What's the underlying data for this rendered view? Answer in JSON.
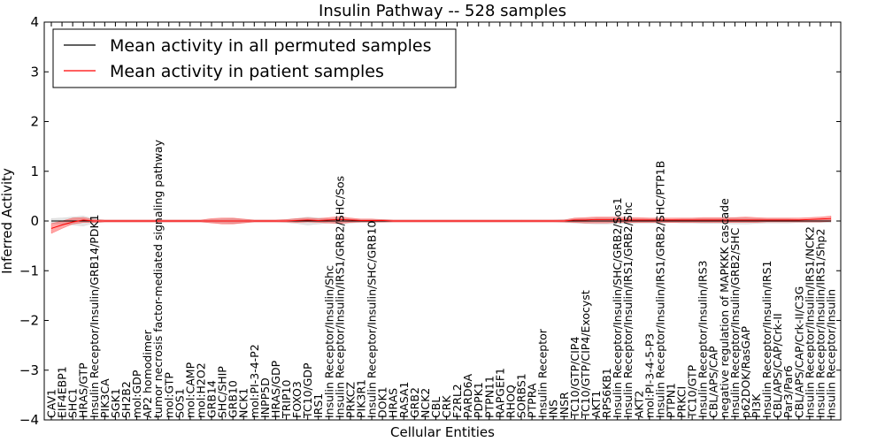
{
  "chart_data": {
    "type": "line",
    "title": "Insulin Pathway -- 528 samples",
    "xlabel": "Cellular Entities",
    "ylabel": "Inferred Activity",
    "ylim": [
      -4,
      4
    ],
    "yticks": [
      "4",
      "3",
      "2",
      "1",
      "0",
      "−1",
      "−2",
      "−3",
      "−4"
    ],
    "grid": false,
    "legend_position": "top-left",
    "legend": [
      {
        "label": "Mean activity in all permuted samples",
        "color": "#000000"
      },
      {
        "label": "Mean activity in patient samples",
        "color": "#ff0000"
      }
    ],
    "categories": [
      "CAV1",
      "EIF4EBP1",
      "SHC1",
      "HRAS/GTP",
      "Insulin Receptor/Insulin/GRB14/PDK1",
      "PIK3CA",
      "SGK1",
      "SH2B2",
      "mol:GDP",
      "AP2 homodimer",
      "tumor necrosis factor-mediated signaling pathway",
      "mol:GTP",
      "SOS1",
      "mol:CAMP",
      "mol:H2O2",
      "GRB14",
      "SHC/SHIP",
      "GRB10",
      "NCK1",
      "mol:PI-3-4-P2",
      "INPP5D",
      "HRAS/GDP",
      "TRIP10",
      "FOXO3",
      "TC10/GDP",
      "IRS1",
      "Insulin Receptor/Insulin/Shc",
      "Insulin Receptor/Insulin/IRS1/GRB2/SHC/Sos",
      "PRKCZ",
      "PIK3R1",
      "Insulin Receptor/Insulin/SHC/GRB10",
      "DOK1",
      "HRAS",
      "RASA1",
      "GRB2",
      "NCK2",
      "CBL",
      "CRK",
      "F2RL2",
      "PARD6A",
      "PDPK1",
      "PTPN11",
      "RAPGEF1",
      "RHOQ",
      "SORBS1",
      "PTPRA",
      "Insulin Receptor",
      "INS",
      "INSR",
      "TC10/GTP/CIP4",
      "TC10/GTP/CIP4/Exocyst",
      "AKT1",
      "RPS6KB1",
      "Insulin Receptor/Insulin/SHC/GRB2/Sos1",
      "Insulin Receptor/Insulin/IRS1/GRB2/Shc",
      "AKT2",
      "mol:PI-3-4-5-P3",
      "Insulin Receptor/Insulin/IRS1/GRB2/SHC/PTP1B",
      "PTPN1",
      "PRKCI",
      "TC10/GTP",
      "Insulin Receptor/Insulin/IRS3",
      "CBL/APS/CAP",
      "negative regulation of MAPKKK cascade",
      "Insulin Receptor/Insulin/GRB2/SHC",
      "p62DOK/RasGAP",
      "PI3K",
      "Insulin Receptor/Insulin/IRS1",
      "CBL/APS/CAP/Crk-II",
      "Par3/Par6",
      "CBL/APS/CAP/Crk-II/C3G",
      "Insulin Receptor/Insulin/IRS1/NCK2",
      "Insulin Receptor/Insulin/IRS1/Shp2",
      "Insulin Receptor/Insulin"
    ],
    "series": [
      {
        "name": "Mean activity in all permuted samples",
        "color": "#000000",
        "values": [
          0.0,
          0.0,
          0.0,
          0.0,
          0.0,
          0.0,
          0.0,
          0.0,
          0.0,
          0.0,
          0.0,
          0.0,
          0.0,
          0.0,
          0.0,
          0.0,
          0.0,
          0.0,
          0.0,
          0.0,
          0.0,
          0.0,
          0.0,
          0.0,
          0.0,
          0.0,
          0.0,
          0.0,
          0.0,
          0.0,
          0.0,
          0.0,
          0.0,
          0.0,
          0.0,
          0.0,
          0.0,
          0.0,
          0.0,
          0.0,
          0.0,
          0.0,
          0.0,
          0.0,
          0.0,
          0.0,
          0.0,
          0.0,
          0.0,
          0.0,
          0.0,
          0.0,
          0.0,
          0.0,
          0.0,
          0.0,
          0.0,
          0.0,
          0.0,
          0.0,
          0.0,
          0.0,
          0.0,
          0.0,
          0.0,
          0.0,
          0.0,
          0.0,
          0.0,
          0.0,
          0.0,
          0.0,
          0.0,
          0.0
        ],
        "band_lower": [
          -0.05,
          -0.06,
          -0.08,
          -0.1,
          -0.04,
          -0.02,
          -0.02,
          -0.02,
          -0.02,
          -0.02,
          -0.02,
          -0.02,
          -0.02,
          -0.02,
          -0.02,
          -0.03,
          -0.04,
          -0.05,
          -0.03,
          -0.02,
          -0.02,
          -0.02,
          -0.03,
          -0.05,
          -0.08,
          -0.06,
          -0.04,
          -0.05,
          -0.04,
          -0.03,
          -0.03,
          -0.03,
          -0.02,
          -0.02,
          -0.02,
          -0.02,
          -0.02,
          -0.02,
          -0.02,
          -0.02,
          -0.02,
          -0.02,
          -0.02,
          -0.02,
          -0.02,
          -0.02,
          -0.02,
          -0.02,
          -0.03,
          -0.04,
          -0.05,
          -0.06,
          -0.06,
          -0.05,
          -0.05,
          -0.04,
          -0.04,
          -0.04,
          -0.03,
          -0.04,
          -0.04,
          -0.05,
          -0.05,
          -0.05,
          -0.06,
          -0.06,
          -0.05,
          -0.04,
          -0.04,
          -0.04,
          -0.03,
          -0.03,
          -0.03,
          -0.03
        ],
        "band_upper": [
          0.05,
          0.06,
          0.08,
          0.1,
          0.04,
          0.02,
          0.02,
          0.02,
          0.02,
          0.02,
          0.02,
          0.02,
          0.02,
          0.02,
          0.02,
          0.03,
          0.04,
          0.05,
          0.03,
          0.02,
          0.02,
          0.02,
          0.03,
          0.05,
          0.08,
          0.06,
          0.04,
          0.05,
          0.04,
          0.03,
          0.03,
          0.03,
          0.02,
          0.02,
          0.02,
          0.02,
          0.02,
          0.02,
          0.02,
          0.02,
          0.02,
          0.02,
          0.02,
          0.02,
          0.02,
          0.02,
          0.02,
          0.02,
          0.03,
          0.04,
          0.05,
          0.06,
          0.06,
          0.05,
          0.05,
          0.04,
          0.04,
          0.04,
          0.03,
          0.04,
          0.04,
          0.05,
          0.05,
          0.05,
          0.06,
          0.06,
          0.05,
          0.04,
          0.04,
          0.04,
          0.03,
          0.03,
          0.03,
          0.03
        ]
      },
      {
        "name": "Mean activity in patient samples",
        "color": "#ff0000",
        "values": [
          -0.15,
          -0.08,
          -0.02,
          0.02,
          0.0,
          0.0,
          0.0,
          0.0,
          0.0,
          0.0,
          0.0,
          0.0,
          0.0,
          0.0,
          0.0,
          0.0,
          0.0,
          0.0,
          0.0,
          0.0,
          0.0,
          0.0,
          0.0,
          0.01,
          0.02,
          0.01,
          0.02,
          0.03,
          0.02,
          0.01,
          0.01,
          0.01,
          0.0,
          0.0,
          0.0,
          0.0,
          0.0,
          0.0,
          0.0,
          0.0,
          0.0,
          0.0,
          0.0,
          0.0,
          0.0,
          0.0,
          0.0,
          0.0,
          0.0,
          0.02,
          0.02,
          0.03,
          0.03,
          0.03,
          0.02,
          0.02,
          0.02,
          0.02,
          0.02,
          0.02,
          0.02,
          0.02,
          0.02,
          0.02,
          0.02,
          0.02,
          0.02,
          0.02,
          0.02,
          0.02,
          0.02,
          0.03,
          0.04,
          0.05
        ],
        "band_lower": [
          -0.25,
          -0.15,
          -0.06,
          -0.03,
          -0.03,
          -0.02,
          -0.02,
          -0.02,
          -0.02,
          -0.02,
          -0.02,
          -0.02,
          -0.02,
          -0.02,
          -0.02,
          -0.04,
          -0.06,
          -0.06,
          -0.04,
          -0.02,
          -0.02,
          -0.02,
          -0.02,
          -0.03,
          -0.02,
          -0.03,
          -0.04,
          -0.05,
          -0.03,
          -0.02,
          -0.02,
          -0.02,
          -0.02,
          -0.02,
          -0.02,
          -0.02,
          -0.02,
          -0.02,
          -0.02,
          -0.02,
          -0.02,
          -0.02,
          -0.02,
          -0.02,
          -0.02,
          -0.02,
          -0.02,
          -0.02,
          -0.02,
          -0.03,
          -0.04,
          -0.04,
          -0.04,
          -0.03,
          -0.03,
          -0.03,
          -0.03,
          -0.03,
          -0.03,
          -0.03,
          -0.03,
          -0.03,
          -0.03,
          -0.03,
          -0.03,
          -0.03,
          -0.03,
          -0.02,
          -0.02,
          -0.02,
          -0.02,
          -0.02,
          -0.02,
          -0.01
        ],
        "band_upper": [
          -0.05,
          0.0,
          0.06,
          0.07,
          0.03,
          0.02,
          0.02,
          0.02,
          0.02,
          0.02,
          0.02,
          0.02,
          0.02,
          0.02,
          0.02,
          0.05,
          0.06,
          0.06,
          0.04,
          0.02,
          0.02,
          0.02,
          0.03,
          0.05,
          0.06,
          0.05,
          0.07,
          0.09,
          0.06,
          0.04,
          0.04,
          0.03,
          0.02,
          0.02,
          0.02,
          0.02,
          0.02,
          0.02,
          0.02,
          0.02,
          0.02,
          0.02,
          0.02,
          0.02,
          0.02,
          0.02,
          0.02,
          0.02,
          0.02,
          0.06,
          0.07,
          0.08,
          0.08,
          0.08,
          0.07,
          0.07,
          0.06,
          0.06,
          0.06,
          0.06,
          0.06,
          0.07,
          0.07,
          0.07,
          0.07,
          0.08,
          0.07,
          0.06,
          0.06,
          0.06,
          0.06,
          0.07,
          0.08,
          0.1
        ]
      }
    ]
  }
}
